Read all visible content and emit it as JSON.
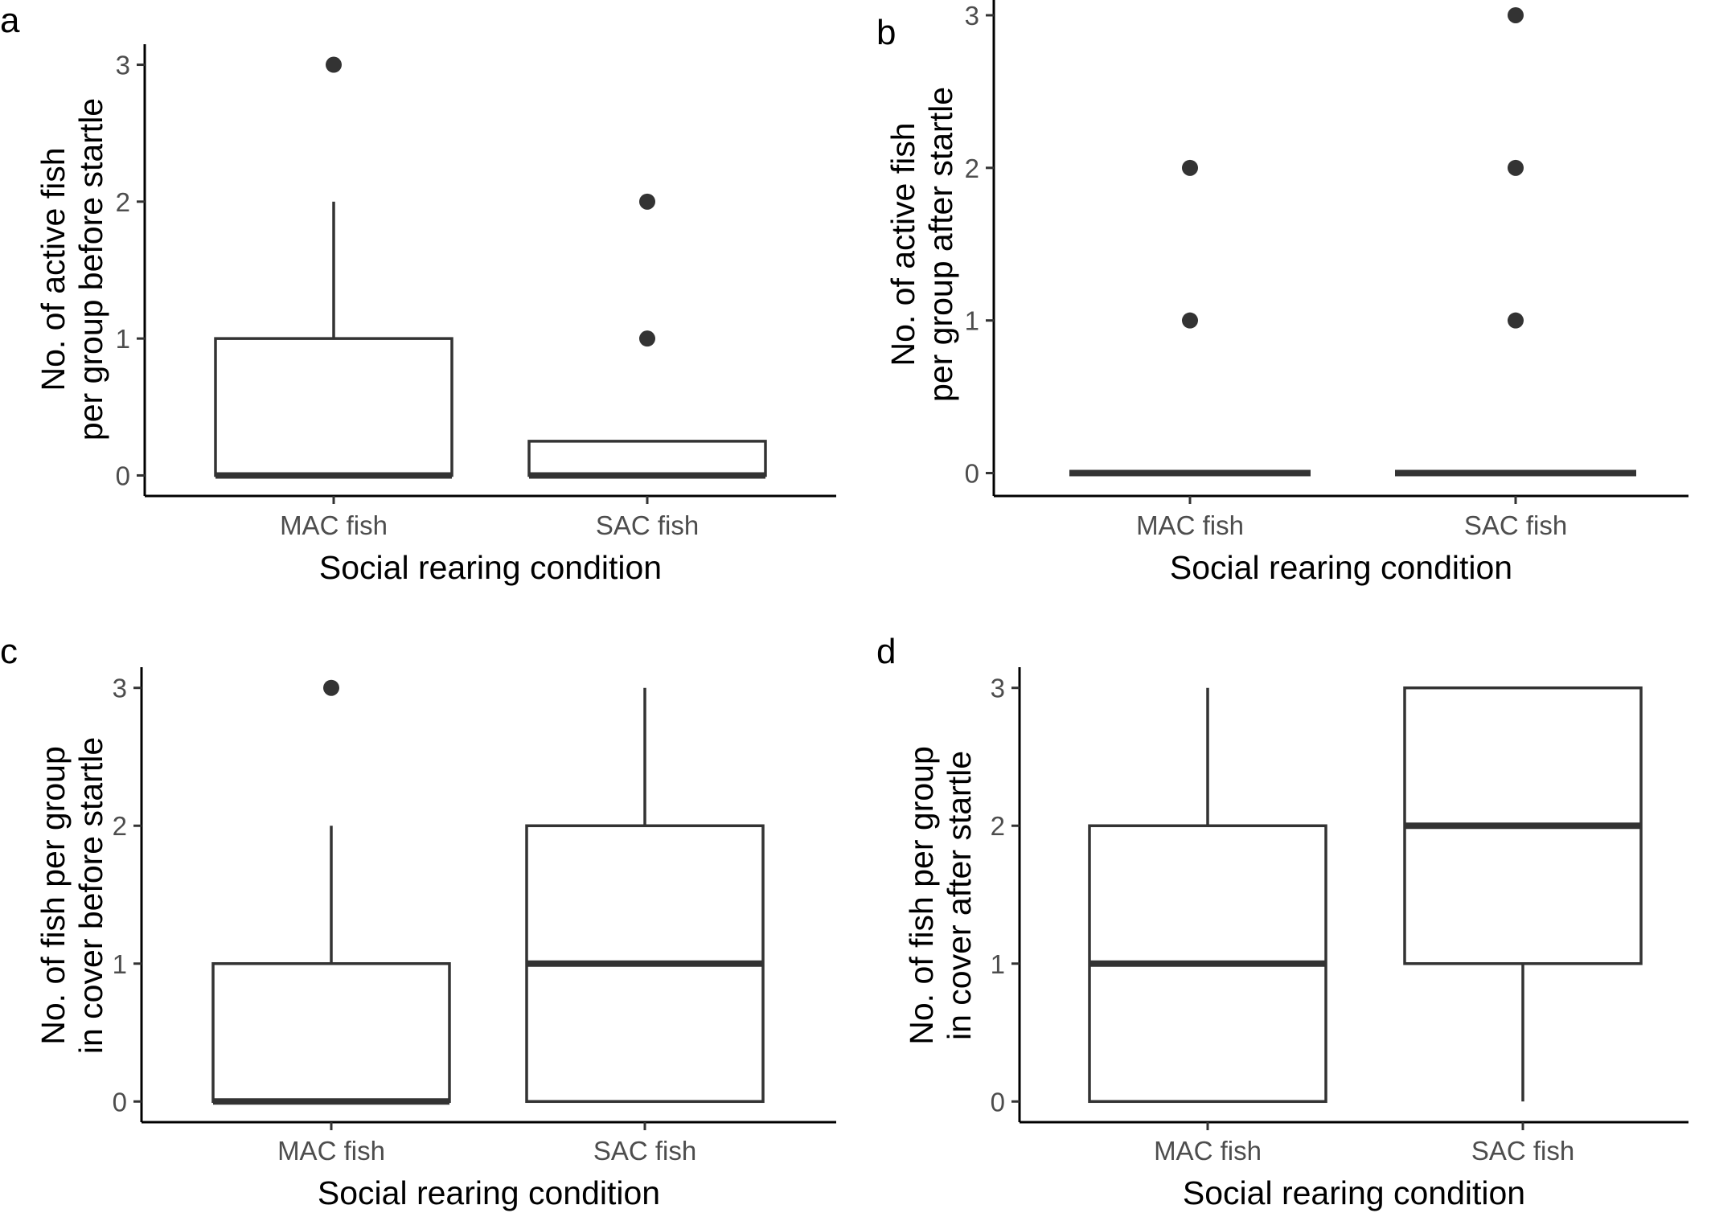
{
  "colors": {
    "box_stroke": "#333333",
    "axis": "#000000",
    "tick_text": "#4d4d4d",
    "background": "#ffffff"
  },
  "chart_data": [
    {
      "panel": "a",
      "type": "boxplot",
      "xlabel": "Social rearing condition",
      "ylabel_lines": [
        "No. of active fish",
        "per group before startle"
      ],
      "ylim": [
        -0.15,
        3.15
      ],
      "yticks": [
        0,
        1,
        2,
        3
      ],
      "categories": [
        "MAC fish",
        "SAC fish"
      ],
      "boxes": [
        {
          "category": "MAC fish",
          "whisker_low": 0,
          "q1": 0,
          "median": 0,
          "q3": 1,
          "whisker_high": 2,
          "outliers": [
            3
          ]
        },
        {
          "category": "SAC fish",
          "whisker_low": 0,
          "q1": 0,
          "median": 0,
          "q3": 0.25,
          "whisker_high": 0.25,
          "outliers": [
            1,
            2
          ]
        }
      ]
    },
    {
      "panel": "b",
      "type": "boxplot",
      "xlabel": "Social rearing condition",
      "ylabel_lines": [
        "No. of active fish",
        "per group after startle"
      ],
      "ylim": [
        -0.15,
        3.1
      ],
      "yticks": [
        0,
        1,
        2,
        3
      ],
      "categories": [
        "MAC fish",
        "SAC fish"
      ],
      "boxes": [
        {
          "category": "MAC fish",
          "whisker_low": 0,
          "q1": 0,
          "median": 0,
          "q3": 0,
          "whisker_high": 0,
          "outliers": [
            1,
            2
          ]
        },
        {
          "category": "SAC fish",
          "whisker_low": 0,
          "q1": 0,
          "median": 0,
          "q3": 0,
          "whisker_high": 0,
          "outliers": [
            1,
            2,
            3
          ]
        }
      ]
    },
    {
      "panel": "c",
      "type": "boxplot",
      "xlabel": "Social rearing condition",
      "ylabel_lines": [
        "No. of  fish per group",
        "in cover before startle"
      ],
      "ylim": [
        -0.15,
        3.15
      ],
      "yticks": [
        0,
        1,
        2,
        3
      ],
      "categories": [
        "MAC fish",
        "SAC fish"
      ],
      "boxes": [
        {
          "category": "MAC fish",
          "whisker_low": 0,
          "q1": 0,
          "median": 0,
          "q3": 1,
          "whisker_high": 2,
          "outliers": [
            3
          ]
        },
        {
          "category": "SAC fish",
          "whisker_low": 0,
          "q1": 0,
          "median": 1,
          "q3": 2,
          "whisker_high": 3,
          "outliers": []
        }
      ]
    },
    {
      "panel": "d",
      "type": "boxplot",
      "xlabel": "Social rearing condition",
      "ylabel_lines": [
        "No. of  fish per group",
        "in cover after startle"
      ],
      "ylim": [
        -0.15,
        3.15
      ],
      "yticks": [
        0,
        1,
        2,
        3
      ],
      "categories": [
        "MAC fish",
        "SAC fish"
      ],
      "boxes": [
        {
          "category": "MAC fish",
          "whisker_low": 0,
          "q1": 0,
          "median": 1,
          "q3": 2,
          "whisker_high": 3,
          "outliers": []
        },
        {
          "category": "SAC fish",
          "whisker_low": 0,
          "q1": 1,
          "median": 2,
          "q3": 3,
          "whisker_high": 3,
          "outliers": []
        }
      ]
    }
  ]
}
